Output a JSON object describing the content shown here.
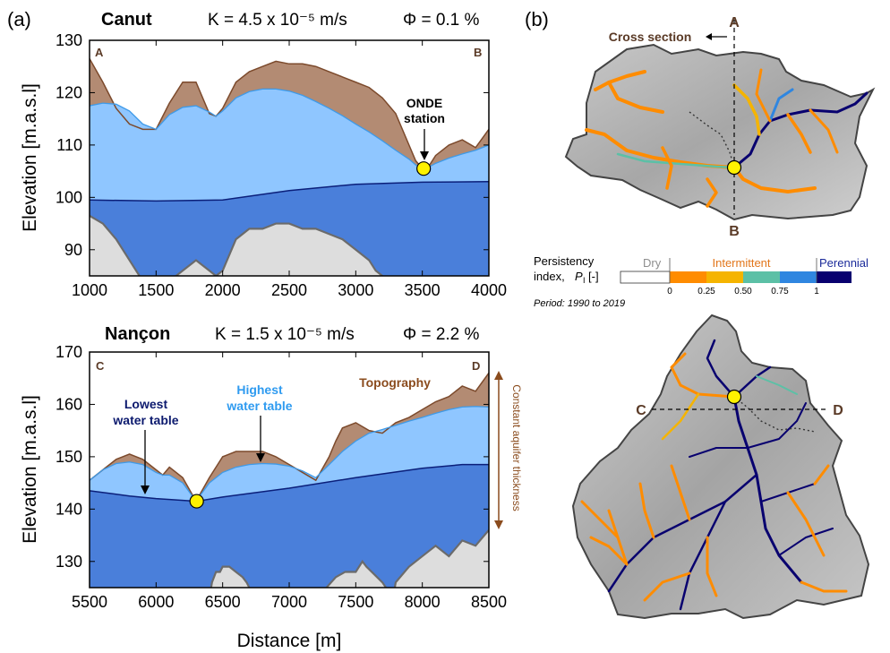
{
  "panel_a_label": "(a)",
  "panel_b_label": "(b)",
  "xlabel": "Distance [m]",
  "chart_data": [
    {
      "type": "area",
      "site": "Canut",
      "k_text": "K = 4.5 x 10⁻⁵ m/s",
      "phi_text": "Φ = 0.1 %",
      "ylabel": "Elevation [m.a.s.l]",
      "xlim": [
        1000,
        4000
      ],
      "ylim": [
        85,
        130
      ],
      "xticks": [
        1000,
        1500,
        2000,
        2500,
        3000,
        3500,
        4000
      ],
      "yticks": [
        90,
        100,
        110,
        120,
        130
      ],
      "left_label": "A",
      "right_label": "B",
      "station": {
        "x": 3510,
        "y": 105.5,
        "label_line1": "ONDE",
        "label_line2": "station"
      },
      "topography": {
        "x": [
          1000,
          1100,
          1200,
          1300,
          1400,
          1500,
          1600,
          1700,
          1800,
          1900,
          1950,
          2000,
          2100,
          2200,
          2300,
          2400,
          2500,
          2600,
          2700,
          2800,
          2900,
          3000,
          3100,
          3200,
          3300,
          3400,
          3450,
          3500,
          3550,
          3600,
          3700,
          3800,
          3900,
          4000
        ],
        "y": [
          126.5,
          122,
          117,
          114,
          113,
          113,
          118,
          122,
          122,
          116,
          115.5,
          117,
          122,
          124,
          125,
          126,
          125.5,
          125.5,
          125,
          124,
          123,
          122,
          121,
          119,
          116,
          110,
          107,
          105.5,
          106,
          108,
          110,
          111,
          109.5,
          113
        ]
      },
      "highest_water_table": {
        "x": [
          1000,
          1100,
          1200,
          1300,
          1400,
          1500,
          1600,
          1700,
          1800,
          1900,
          1950,
          2000,
          2100,
          2200,
          2300,
          2400,
          2500,
          2600,
          2700,
          2800,
          2900,
          3000,
          3100,
          3200,
          3300,
          3400,
          3450,
          3500,
          3550,
          3600,
          3700,
          3800,
          3900,
          4000
        ],
        "y": [
          117.5,
          118,
          117.8,
          116.5,
          114,
          113,
          115.8,
          117.2,
          117.5,
          116.3,
          115.5,
          116.5,
          119,
          120.2,
          120.7,
          120.7,
          120.3,
          119.5,
          118.3,
          117,
          115.6,
          114,
          112.5,
          110.8,
          109,
          107.3,
          106.2,
          105.5,
          105.8,
          106.5,
          107.5,
          108.3,
          109,
          110
        ]
      },
      "lowest_water_table": {
        "x": [
          1000,
          1500,
          2000,
          2500,
          3000,
          3500,
          4000
        ],
        "y": [
          99.5,
          99.3,
          99.5,
          101.3,
          102.5,
          102.9,
          103
        ]
      },
      "aquifer_bottom": {
        "x": [
          1000,
          1100,
          1200,
          1300,
          1400,
          1500,
          1600,
          1700,
          1800,
          1900,
          1950,
          2000,
          2100,
          2200,
          2300,
          2400,
          2500,
          2600,
          2700,
          2800,
          2900,
          3000,
          3100,
          3150,
          3200,
          3250,
          3300,
          4000
        ],
        "y": [
          96.5,
          95,
          92,
          88,
          84,
          84,
          84,
          86,
          88,
          86,
          85,
          86,
          92,
          94,
          94,
          95,
          95,
          94,
          94,
          93,
          92,
          90,
          88,
          86,
          85,
          83,
          83,
          83
        ]
      }
    },
    {
      "type": "area",
      "site": "Nançon",
      "k_text": "K = 1.5 x 10⁻⁵ m/s",
      "phi_text": "Φ = 2.2 %",
      "ylabel": "Elevation [m.a.s.l]",
      "xlim": [
        5500,
        8500
      ],
      "ylim": [
        125,
        170
      ],
      "xticks": [
        5500,
        6000,
        6500,
        7000,
        7500,
        8000,
        8500
      ],
      "yticks": [
        130,
        140,
        150,
        160,
        170
      ],
      "left_label": "C",
      "right_label": "D",
      "station": {
        "x": 6305,
        "y": 141.5
      },
      "annotations": {
        "lowest_line1": "Lowest",
        "lowest_line2": "water table",
        "highest_line1": "Highest",
        "highest_line2": "water table",
        "topography": "Topography",
        "aquifer": "Constant aquifer thickness"
      },
      "topography": {
        "x": [
          5500,
          5600,
          5700,
          5800,
          5900,
          6000,
          6050,
          6100,
          6200,
          6300,
          6400,
          6500,
          6600,
          6700,
          6800,
          6900,
          7000,
          7100,
          7200,
          7300,
          7350,
          7400,
          7500,
          7600,
          7700,
          7800,
          7900,
          8000,
          8100,
          8200,
          8300,
          8400,
          8500
        ],
        "y": [
          145.5,
          147.5,
          149.5,
          150.5,
          149.5,
          147.5,
          146.5,
          148,
          146,
          141.5,
          146,
          150,
          151,
          151,
          151,
          150,
          148.5,
          147,
          145.5,
          150,
          153,
          155.5,
          156.5,
          155,
          154.5,
          156.5,
          157.5,
          159,
          160.5,
          161.5,
          163.5,
          162.5,
          166
        ]
      },
      "highest_water_table": {
        "x": [
          5500,
          5600,
          5700,
          5800,
          5900,
          6000,
          6050,
          6100,
          6200,
          6300,
          6400,
          6500,
          6600,
          6700,
          6800,
          6900,
          7000,
          7100,
          7200,
          7300,
          7400,
          7500,
          7600,
          7700,
          7800,
          7900,
          8000,
          8100,
          8200,
          8300,
          8400,
          8500
        ],
        "y": [
          145.5,
          147.5,
          148.7,
          149,
          148.5,
          147,
          146.5,
          146.5,
          145,
          141.5,
          145,
          147,
          148,
          148.5,
          148.7,
          148.6,
          148.2,
          147.3,
          146,
          148.5,
          151,
          153,
          154.5,
          155.2,
          156,
          156.8,
          157.5,
          158.3,
          159,
          159.5,
          159.6,
          159.5
        ]
      },
      "lowest_water_table": {
        "x": [
          5500,
          5800,
          6000,
          6305,
          6500,
          7000,
          7500,
          8000,
          8300,
          8500
        ],
        "y": [
          143.5,
          142.5,
          142,
          141.5,
          142.3,
          144,
          146,
          147.8,
          148.5,
          148.5
        ]
      },
      "aquifer_bottom": {
        "x": [
          5500,
          5700,
          6400,
          6420,
          6450,
          6480,
          6500,
          6550,
          6600,
          6650,
          6680,
          6700,
          6720,
          6750,
          6760,
          7200,
          7280,
          7350,
          7420,
          7500,
          7550,
          7580,
          7620,
          7700,
          7780,
          7800,
          7900,
          8000,
          8100,
          8200,
          8300,
          8400,
          8500
        ],
        "y": [
          123,
          123,
          123,
          126,
          128,
          128,
          129,
          129,
          128,
          127,
          126,
          125,
          124,
          123,
          123,
          123,
          125,
          127,
          128,
          128,
          130,
          129,
          128,
          126,
          123,
          126,
          129,
          131,
          133,
          131,
          134,
          133,
          136
        ]
      }
    }
  ],
  "map_b": {
    "cross_section_label": "Cross section",
    "section_top": "A",
    "section_bottom": "B",
    "section_left": "C",
    "section_right": "D"
  },
  "legend": {
    "title_line1": "Persistency",
    "title_line2": "index,",
    "symbol": "P",
    "subscript": "I",
    "unit": "[-]",
    "dry": "Dry",
    "intermittent": "Intermittent",
    "perennial": "Perennial",
    "ticks": [
      "0",
      "0.25",
      "0.50",
      "0.75",
      "1"
    ],
    "period": "Period: 1990 to 2019",
    "colors": {
      "dry": "#ffffff",
      "c1": "#ff8c00",
      "c2": "#f5b400",
      "c3": "#5cc0a6",
      "c4": "#2f86e0",
      "perennial": "#08006f"
    }
  },
  "colors": {
    "topography": "#b38b73",
    "topography_line": "#7c4a2c",
    "highest": "#8fc6ff",
    "highest_line": "#3e9ae8",
    "lowest": "#4a7fda",
    "lowest_line": "#0b1f7a",
    "bottom": "#dddddd",
    "bottom_line": "#6b6b6b",
    "station": "#fff200",
    "highest_text": "#2f9bf0",
    "lowest_text": "#0c1a6e",
    "brown_text": "#8b4c1e"
  }
}
